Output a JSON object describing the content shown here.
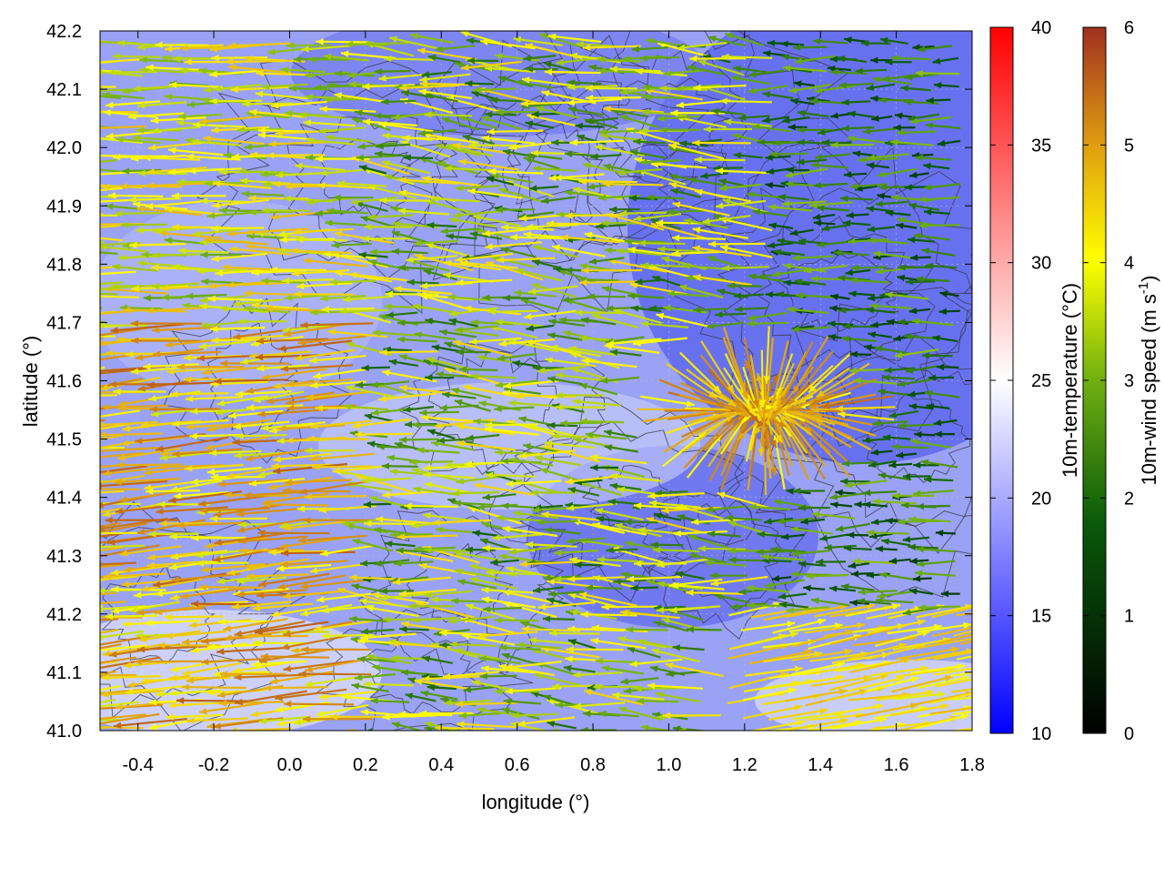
{
  "chart_data": {
    "type": "scatter",
    "title": "",
    "xlabel": "longitude (°)",
    "ylabel": "latitude (°)",
    "xlim": [
      -0.5,
      1.8
    ],
    "ylim": [
      41.0,
      42.2
    ],
    "xticks": [
      "-0.4",
      "-0.2",
      "0.0",
      "0.2",
      "0.4",
      "0.6",
      "0.8",
      "1.0",
      "1.2",
      "1.4",
      "1.6",
      "1.8"
    ],
    "xtick_values": [
      -0.4,
      -0.2,
      0.0,
      0.2,
      0.4,
      0.6,
      0.8,
      1.0,
      1.2,
      1.4,
      1.6,
      1.8
    ],
    "yticks": [
      "41.0",
      "41.1",
      "41.2",
      "41.3",
      "41.4",
      "41.5",
      "41.6",
      "41.7",
      "41.8",
      "41.9",
      "42.0",
      "42.1",
      "42.2"
    ],
    "ytick_values": [
      41.0,
      41.1,
      41.2,
      41.3,
      41.4,
      41.5,
      41.6,
      41.7,
      41.8,
      41.9,
      42.0,
      42.1,
      42.2
    ],
    "grid": true,
    "background_field": "10m-temperature (blue–white–red shading)",
    "overlay": "terrain contour lines (dark grey)",
    "vectors": "10m-wind arrows colored by speed",
    "colorbars": [
      {
        "label": "10m-temperature (°C)",
        "range": [
          10,
          40
        ],
        "ticks": [
          "10",
          "15",
          "20",
          "25",
          "30",
          "35",
          "40"
        ],
        "tick_values": [
          10,
          15,
          20,
          25,
          30,
          35,
          40
        ],
        "colors": [
          "#0000ff",
          "#ffffff",
          "#ff0000"
        ]
      },
      {
        "label": "10m-wind speed (m s",
        "label_sup": "-1",
        "label_end": ")",
        "range": [
          0,
          6
        ],
        "ticks": [
          "0",
          "1",
          "2",
          "3",
          "4",
          "5",
          "6"
        ],
        "tick_values": [
          0,
          1,
          2,
          3,
          4,
          5,
          6
        ],
        "colors": [
          "#000000",
          "#0a5a0a",
          "#70b010",
          "#ffff00",
          "#e0a010",
          "#a03020"
        ]
      }
    ],
    "wind_regions": [
      {
        "region": "west, lat 41.0–41.7",
        "direction_deg_from_east": 185,
        "speed": 5.6
      },
      {
        "region": "west, lat 41.7–42.2",
        "direction_deg_from_east": 180,
        "speed": 4.8
      },
      {
        "region": "central",
        "direction_deg_from_east": 175,
        "speed": 3.2
      },
      {
        "region": "east, lat 41.3–42.2",
        "direction_deg_from_east": 180,
        "speed": 2.2
      },
      {
        "region": "east coast, lat 41.0–41.2",
        "direction_deg_from_east": 10,
        "speed": 4.8
      },
      {
        "region": "around lon 1.25, lat 41.55",
        "pattern": "convergence",
        "speed": 5.5
      }
    ]
  }
}
